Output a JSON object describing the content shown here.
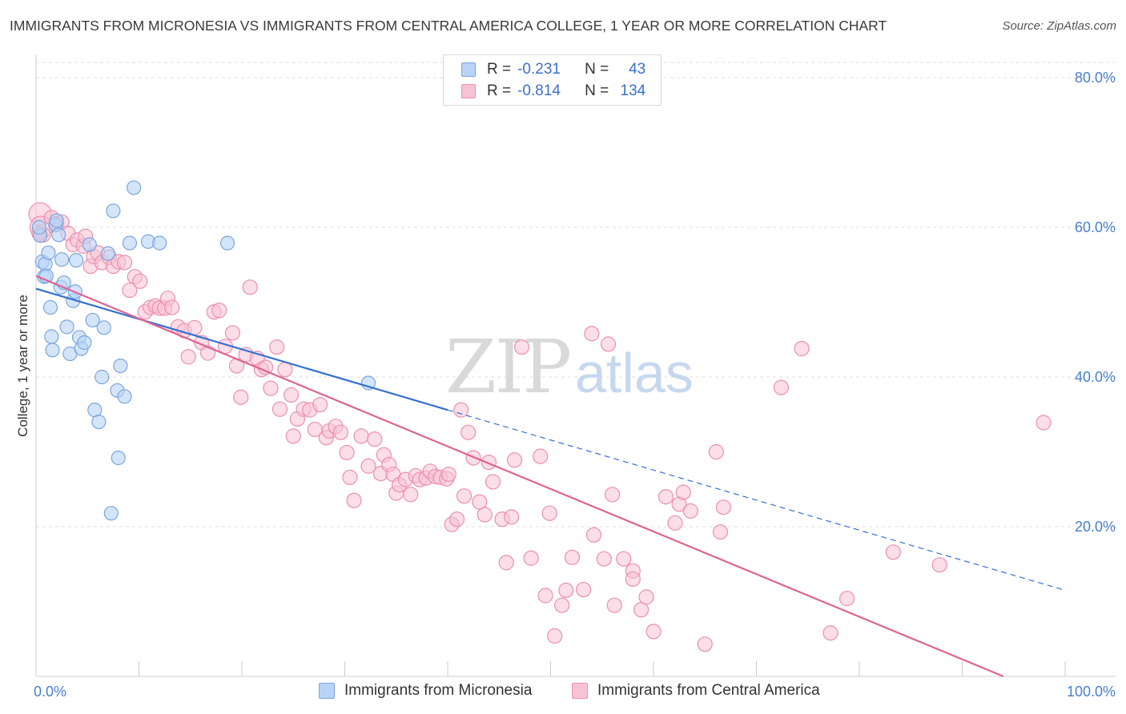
{
  "header": {
    "title": "IMMIGRANTS FROM MICRONESIA VS IMMIGRANTS FROM CENTRAL AMERICA COLLEGE, 1 YEAR OR MORE CORRELATION CHART",
    "source": "Source: ZipAtlas.com"
  },
  "watermark": {
    "zip": "ZIP",
    "atlas": "atlas"
  },
  "legend": {
    "r_label": "R =",
    "n_label": "N =",
    "rows": [
      {
        "r": "-0.231",
        "n": "43"
      },
      {
        "r": "-0.814",
        "n": "134"
      }
    ]
  },
  "colors": {
    "blue_fill": "#b8d3f5",
    "blue_stroke": "#7aa6e0",
    "blue_line": "#3470d1",
    "pink_fill": "#f7c3d4",
    "pink_stroke": "#ec8fae",
    "pink_line": "#e0638e",
    "tick": "#4a7fd0",
    "grid": "#dddddd"
  },
  "chart_data": {
    "type": "scatter",
    "title": "IMMIGRANTS FROM MICRONESIA VS IMMIGRANTS FROM CENTRAL AMERICA COLLEGE, 1 YEAR OR MORE CORRELATION CHART",
    "xlabel": "",
    "ylabel": "College, 1 year or more",
    "xlim": [
      0,
      100
    ],
    "ylim": [
      0,
      80
    ],
    "x_tick_labels": [
      "0.0%",
      "100.0%"
    ],
    "y_ticks": [
      20,
      40,
      60,
      80
    ],
    "y_tick_labels": [
      "20.0%",
      "40.0%",
      "60.0%",
      "80.0%"
    ],
    "grid": true,
    "legend_position": "top-center",
    "series": [
      {
        "name": "Immigrants from Micronesia",
        "color": "#7aa6e0",
        "points": [
          [
            0.4,
            58.9
          ],
          [
            0.6,
            55.4
          ],
          [
            0.8,
            53.4
          ],
          [
            0.9,
            55.1
          ],
          [
            1.2,
            56.6
          ],
          [
            1.4,
            49.3
          ],
          [
            1.5,
            45.4
          ],
          [
            1.6,
            43.6
          ],
          [
            1.9,
            60.3
          ],
          [
            2.0,
            60.9
          ],
          [
            2.2,
            59.0
          ],
          [
            2.4,
            52.0
          ],
          [
            2.5,
            55.7
          ],
          [
            2.7,
            52.6
          ],
          [
            3.0,
            46.7
          ],
          [
            3.3,
            43.1
          ],
          [
            3.6,
            50.2
          ],
          [
            3.8,
            51.4
          ],
          [
            3.9,
            55.6
          ],
          [
            4.2,
            45.3
          ],
          [
            4.4,
            43.8
          ],
          [
            4.7,
            44.6
          ],
          [
            5.2,
            57.7
          ],
          [
            5.5,
            47.6
          ],
          [
            5.7,
            35.6
          ],
          [
            6.1,
            34.0
          ],
          [
            6.4,
            40.0
          ],
          [
            6.6,
            46.6
          ],
          [
            7.0,
            56.5
          ],
          [
            7.3,
            21.8
          ],
          [
            7.5,
            62.2
          ],
          [
            7.9,
            38.2
          ],
          [
            8.0,
            29.2
          ],
          [
            8.2,
            41.5
          ],
          [
            8.6,
            37.4
          ],
          [
            9.1,
            57.9
          ],
          [
            9.5,
            65.3
          ],
          [
            10.9,
            58.1
          ],
          [
            12.0,
            57.9
          ],
          [
            18.6,
            57.9
          ],
          [
            32.3,
            39.2
          ],
          [
            0.3,
            60.0
          ],
          [
            1.0,
            53.5
          ]
        ],
        "trend": {
          "x": [
            0,
            40
          ],
          "y": [
            51.8,
            35.6
          ],
          "dashed_to": {
            "x": 100,
            "y": 11.5
          }
        }
      },
      {
        "name": "Immigrants from Central America",
        "color": "#ec8fae",
        "points": [
          [
            0.4,
            61.8
          ],
          [
            0.5,
            60.0
          ],
          [
            0.7,
            59.0
          ],
          [
            1.5,
            61.3
          ],
          [
            2.0,
            60.5
          ],
          [
            2.5,
            60.7
          ],
          [
            3.1,
            59.2
          ],
          [
            3.6,
            57.7
          ],
          [
            4.0,
            58.3
          ],
          [
            4.6,
            57.5
          ],
          [
            4.8,
            58.8
          ],
          [
            5.3,
            54.8
          ],
          [
            5.6,
            56.1
          ],
          [
            6.0,
            56.6
          ],
          [
            6.4,
            55.3
          ],
          [
            7.1,
            56.0
          ],
          [
            7.5,
            54.8
          ],
          [
            8.0,
            55.4
          ],
          [
            8.6,
            55.3
          ],
          [
            9.1,
            51.6
          ],
          [
            9.6,
            53.4
          ],
          [
            10.1,
            52.8
          ],
          [
            10.6,
            48.7
          ],
          [
            11.1,
            49.3
          ],
          [
            11.6,
            49.5
          ],
          [
            12.0,
            49.2
          ],
          [
            12.5,
            49.2
          ],
          [
            12.8,
            50.5
          ],
          [
            13.2,
            49.3
          ],
          [
            13.8,
            46.7
          ],
          [
            14.4,
            46.2
          ],
          [
            14.8,
            42.7
          ],
          [
            15.4,
            46.6
          ],
          [
            16.1,
            44.6
          ],
          [
            16.7,
            43.2
          ],
          [
            17.3,
            48.7
          ],
          [
            17.8,
            48.9
          ],
          [
            18.4,
            44.1
          ],
          [
            19.1,
            45.9
          ],
          [
            19.5,
            41.5
          ],
          [
            19.9,
            37.3
          ],
          [
            20.4,
            43.0
          ],
          [
            20.8,
            52.0
          ],
          [
            21.5,
            42.5
          ],
          [
            21.9,
            41.0
          ],
          [
            22.3,
            41.3
          ],
          [
            22.8,
            38.5
          ],
          [
            23.4,
            44.0
          ],
          [
            23.7,
            35.7
          ],
          [
            24.2,
            41.0
          ],
          [
            24.8,
            37.6
          ],
          [
            25.0,
            32.1
          ],
          [
            25.4,
            34.4
          ],
          [
            26.0,
            35.7
          ],
          [
            26.6,
            35.6
          ],
          [
            27.1,
            33.0
          ],
          [
            27.6,
            36.3
          ],
          [
            28.2,
            31.9
          ],
          [
            28.5,
            32.8
          ],
          [
            29.1,
            33.4
          ],
          [
            29.6,
            32.6
          ],
          [
            30.2,
            29.9
          ],
          [
            30.5,
            26.6
          ],
          [
            30.9,
            23.5
          ],
          [
            31.6,
            32.1
          ],
          [
            32.3,
            28.1
          ],
          [
            32.9,
            31.7
          ],
          [
            33.5,
            27.1
          ],
          [
            33.8,
            29.6
          ],
          [
            34.3,
            28.3
          ],
          [
            34.7,
            27.0
          ],
          [
            35.0,
            24.5
          ],
          [
            35.3,
            25.6
          ],
          [
            35.9,
            26.3
          ],
          [
            36.4,
            24.3
          ],
          [
            36.9,
            26.8
          ],
          [
            37.3,
            26.3
          ],
          [
            37.9,
            26.5
          ],
          [
            38.3,
            27.4
          ],
          [
            38.8,
            26.7
          ],
          [
            39.3,
            26.6
          ],
          [
            39.9,
            26.4
          ],
          [
            40.1,
            27.0
          ],
          [
            40.4,
            20.3
          ],
          [
            40.9,
            21.0
          ],
          [
            41.3,
            35.6
          ],
          [
            41.6,
            24.1
          ],
          [
            42.0,
            32.6
          ],
          [
            42.5,
            29.2
          ],
          [
            43.1,
            23.3
          ],
          [
            43.6,
            21.6
          ],
          [
            44.0,
            28.6
          ],
          [
            44.4,
            26.0
          ],
          [
            45.3,
            21.0
          ],
          [
            45.7,
            15.2
          ],
          [
            46.2,
            21.3
          ],
          [
            46.5,
            28.9
          ],
          [
            47.2,
            44.0
          ],
          [
            48.1,
            15.8
          ],
          [
            49.0,
            29.4
          ],
          [
            49.5,
            10.8
          ],
          [
            49.9,
            21.8
          ],
          [
            50.4,
            5.4
          ],
          [
            51.1,
            9.5
          ],
          [
            51.5,
            11.5
          ],
          [
            52.1,
            15.9
          ],
          [
            53.2,
            11.6
          ],
          [
            54.0,
            45.8
          ],
          [
            54.2,
            18.9
          ],
          [
            55.2,
            15.7
          ],
          [
            55.6,
            44.4
          ],
          [
            56.0,
            24.3
          ],
          [
            56.2,
            9.5
          ],
          [
            57.1,
            15.7
          ],
          [
            58.0,
            14.1
          ],
          [
            58.0,
            13.0
          ],
          [
            58.8,
            8.9
          ],
          [
            59.3,
            10.6
          ],
          [
            60.0,
            6.0
          ],
          [
            61.2,
            24.0
          ],
          [
            62.1,
            20.5
          ],
          [
            62.5,
            23.0
          ],
          [
            62.9,
            24.6
          ],
          [
            63.6,
            22.1
          ],
          [
            65.0,
            4.3
          ],
          [
            66.1,
            30.0
          ],
          [
            66.5,
            19.3
          ],
          [
            66.8,
            22.6
          ],
          [
            72.4,
            38.6
          ],
          [
            74.4,
            43.8
          ],
          [
            77.2,
            5.8
          ],
          [
            78.8,
            10.4
          ],
          [
            83.3,
            16.6
          ],
          [
            87.8,
            14.9
          ],
          [
            97.9,
            33.9
          ],
          [
            0.3,
            59.2
          ]
        ],
        "trend": {
          "x": [
            0,
            94
          ],
          "y": [
            53.5,
            0
          ]
        }
      }
    ]
  },
  "bottom_legend": {
    "blue_label": "Immigrants from Micronesia",
    "pink_label": "Immigrants from Central America"
  }
}
